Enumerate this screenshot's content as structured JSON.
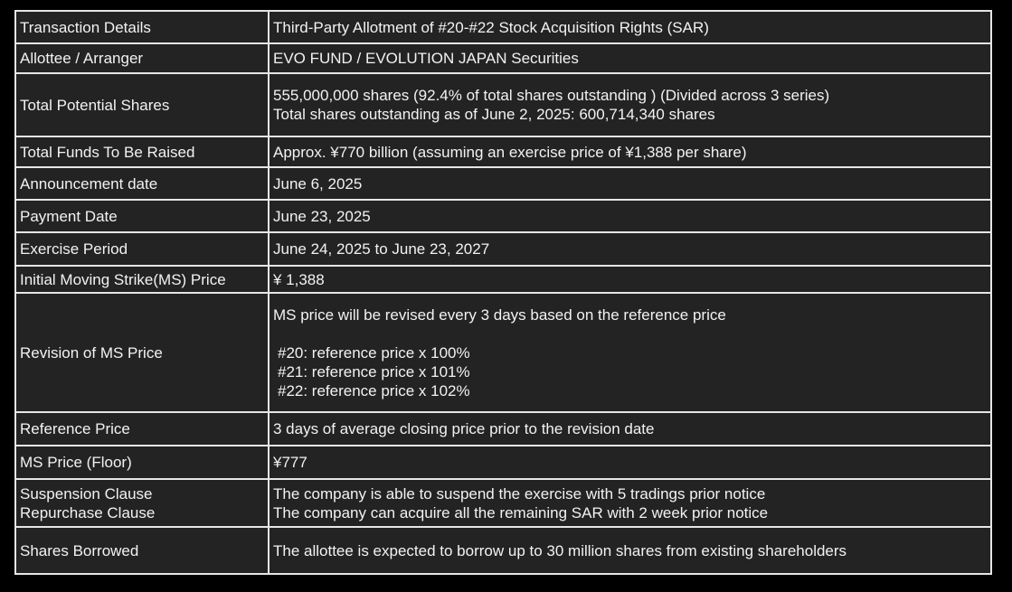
{
  "table": {
    "rows": [
      {
        "label": "Transaction Details",
        "value": [
          [
            "Third-Party Allotment of #20-#22 Stock Acquisition Rights (SAR)"
          ]
        ]
      },
      {
        "label": "Allottee / Arranger",
        "value": [
          [
            "EVO FUND / EVOLUTION JAPAN Securities"
          ]
        ]
      },
      {
        "label": "Total Potential Shares",
        "value": [
          [
            "555,000,000 shares (92.4% of total shares outstanding ) (Divided across 3 series)",
            "Total shares outstanding as of June 2, 2025: 600,714,340 shares"
          ]
        ]
      },
      {
        "label": "Total Funds To Be Raised",
        "value": [
          [
            "Approx. ¥770 billion (assuming an exercise price of ¥1,388 per share)"
          ]
        ]
      },
      {
        "label": "Announcement date",
        "value": [
          [
            "June 6, 2025"
          ]
        ]
      },
      {
        "label": "Payment Date",
        "value": [
          [
            "June 23, 2025"
          ]
        ]
      },
      {
        "label": "Exercise Period",
        "value": [
          [
            "June 24, 2025 to June 23, 2027"
          ]
        ]
      },
      {
        "label": "Initial Moving Strike(MS) Price",
        "value": [
          [
            "¥ 1,388"
          ]
        ]
      },
      {
        "label": "Revision of MS Price",
        "value": [
          [
            "MS price will be revised every 3 days based on the reference price"
          ],
          [
            "#20: reference price x 100%",
            "#21: reference price x 101%",
            "#22: reference price x 102%"
          ]
        ]
      },
      {
        "label": "Reference Price",
        "value": [
          [
            "3 days of average closing price prior to the revision date"
          ]
        ]
      },
      {
        "label": "MS Price (Floor)",
        "value": [
          [
            "¥777"
          ]
        ]
      },
      {
        "label": [
          "Suspension Clause",
          "Repurchase Clause"
        ],
        "value": [
          [
            "The company is able to suspend the exercise with  5 tradings prior notice",
            "The company can acquire all  the remaining SAR with 2 week prior notice"
          ]
        ]
      },
      {
        "label": "Shares Borrowed",
        "value": [
          [
            "The allottee is expected to borrow up to 30 million shares from existing shareholders"
          ]
        ]
      }
    ]
  }
}
